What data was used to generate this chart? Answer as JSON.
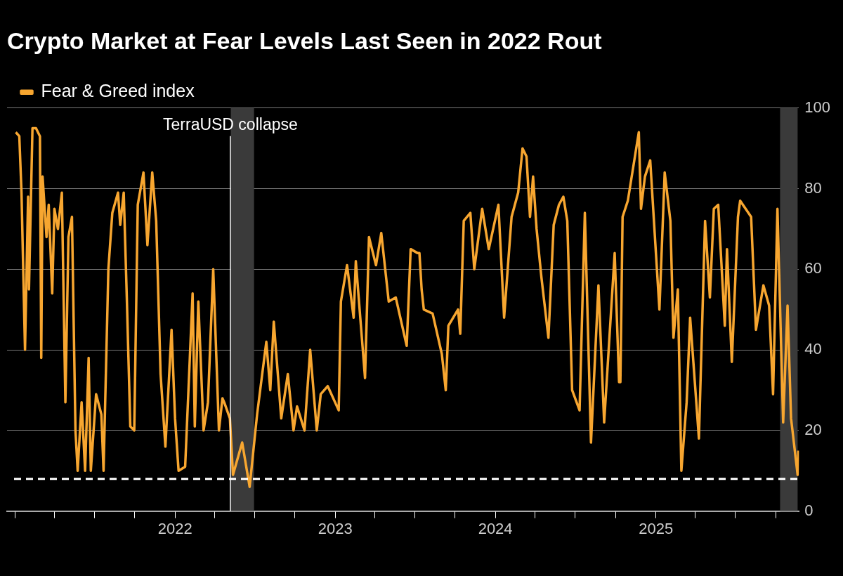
{
  "chart_data": {
    "type": "line",
    "title": "Crypto Market at Fear Levels Last Seen in 2022 Rout",
    "x": [
      "2021-01-03",
      "2021-01-11",
      "2021-01-16",
      "2021-01-24",
      "2021-01-31",
      "2021-02-02",
      "2021-02-10",
      "2021-02-18",
      "2021-02-27",
      "2021-03-02",
      "2021-03-05",
      "2021-03-14",
      "2021-03-19",
      "2021-03-27",
      "2021-04-01",
      "2021-04-09",
      "2021-04-18",
      "2021-04-26",
      "2021-05-03",
      "2021-05-11",
      "2021-05-19",
      "2021-05-24",
      "2021-06-02",
      "2021-06-10",
      "2021-06-18",
      "2021-06-23",
      "2021-07-05",
      "2021-07-17",
      "2021-07-22",
      "2021-08-02",
      "2021-08-11",
      "2021-08-24",
      "2021-08-29",
      "2021-09-06",
      "2021-09-13",
      "2021-09-21",
      "2021-09-30",
      "2021-10-08",
      "2021-10-21",
      "2021-10-30",
      "2021-11-10",
      "2021-11-19",
      "2021-11-29",
      "2021-12-10",
      "2021-12-24",
      "2022-01-01",
      "2022-01-09",
      "2022-01-24",
      "2022-02-10",
      "2022-02-15",
      "2022-02-23",
      "2022-03-07",
      "2022-03-17",
      "2022-03-29",
      "2022-04-11",
      "2022-04-19",
      "2022-04-23",
      "2022-05-06",
      "2022-05-13",
      "2022-06-03",
      "2022-06-20",
      "2022-07-07",
      "2022-07-28",
      "2022-08-06",
      "2022-08-14",
      "2022-08-31",
      "2022-09-15",
      "2022-09-28",
      "2022-10-06",
      "2022-10-23",
      "2022-11-05",
      "2022-11-20",
      "2022-11-29",
      "2022-12-15",
      "2023-01-09",
      "2023-01-14",
      "2023-01-28",
      "2023-02-12",
      "2023-02-17",
      "2023-03-10",
      "2023-03-19",
      "2023-04-04",
      "2023-04-16",
      "2023-05-03",
      "2023-05-19",
      "2023-06-13",
      "2023-06-22",
      "2023-07-08",
      "2023-07-12",
      "2023-07-17",
      "2023-07-22",
      "2023-08-11",
      "2023-09-01",
      "2023-09-10",
      "2023-09-16",
      "2023-10-08",
      "2023-10-13",
      "2023-10-21",
      "2023-11-05",
      "2023-11-14",
      "2023-12-02",
      "2023-12-17",
      "2024-01-08",
      "2024-01-21",
      "2024-02-07",
      "2024-02-22",
      "2024-03-03",
      "2024-03-12",
      "2024-03-20",
      "2024-03-27",
      "2024-04-04",
      "2024-04-15",
      "2024-05-01",
      "2024-05-13",
      "2024-05-25",
      "2024-06-04",
      "2024-06-13",
      "2024-06-24",
      "2024-07-11",
      "2024-07-23",
      "2024-08-06",
      "2024-08-23",
      "2024-09-05",
      "2024-09-29",
      "2024-10-09",
      "2024-10-12",
      "2024-10-17",
      "2024-10-29",
      "2024-11-23",
      "2024-11-28",
      "2024-12-07",
      "2024-12-19",
      "2025-01-01",
      "2025-01-09",
      "2025-01-21",
      "2025-02-03",
      "2025-02-10",
      "2025-02-20",
      "2025-02-28",
      "2025-03-12",
      "2025-03-20",
      "2025-04-09",
      "2025-04-23",
      "2025-05-04",
      "2025-05-13",
      "2025-05-23",
      "2025-06-07",
      "2025-06-12",
      "2025-06-23",
      "2025-07-07",
      "2025-07-12",
      "2025-08-06",
      "2025-08-17",
      "2025-09-03",
      "2025-09-16",
      "2025-09-25",
      "2025-10-05",
      "2025-10-18",
      "2025-10-28",
      "2025-11-05",
      "2025-11-20",
      "2025-11-22"
    ],
    "series": [
      {
        "name": "Fear & Greed index",
        "color": "#f7a630",
        "values": [
          94,
          93,
          79,
          40,
          78,
          55,
          95,
          95,
          93,
          38,
          83,
          68,
          76,
          54,
          75,
          70,
          79,
          27,
          68,
          73,
          20,
          10,
          27,
          10,
          38,
          10,
          29,
          24,
          10,
          60,
          74,
          79,
          71,
          79,
          53,
          21,
          20,
          76,
          84,
          66,
          84,
          72,
          34,
          16,
          45,
          23,
          10,
          11,
          54,
          21,
          52,
          20,
          27,
          60,
          20,
          28,
          27,
          23,
          9,
          17,
          6,
          24,
          42,
          30,
          47,
          23,
          34,
          20,
          26,
          20,
          40,
          20,
          29,
          31,
          25,
          52,
          61,
          48,
          62,
          33,
          68,
          61,
          69,
          52,
          53,
          41,
          65,
          64,
          64,
          55,
          50,
          49,
          39,
          30,
          46,
          50,
          44,
          72,
          74,
          60,
          75,
          65,
          76,
          48,
          73,
          79,
          90,
          88,
          73,
          83,
          70,
          58,
          43,
          71,
          76,
          78,
          72,
          30,
          25,
          74,
          17,
          56,
          22,
          64,
          32,
          32,
          73,
          77,
          94,
          75,
          83,
          87,
          64,
          50,
          84,
          72,
          43,
          55,
          10,
          27,
          48,
          18,
          72,
          53,
          75,
          76,
          46,
          65,
          37,
          73,
          77,
          73,
          45,
          56,
          51,
          29,
          75,
          22,
          51,
          23,
          9,
          15
        ]
      }
    ],
    "xlim": [
      "2020-12-14",
      "2025-11-23"
    ],
    "xticks": [
      {
        "value": "2021-01-01",
        "label": null
      },
      {
        "value": "2021-04-01",
        "label": null
      },
      {
        "value": "2021-07-01",
        "label": null
      },
      {
        "value": "2021-10-01",
        "label": null
      },
      {
        "value": "2022-01-01",
        "label": "2022"
      },
      {
        "value": "2022-04-01",
        "label": null
      },
      {
        "value": "2022-07-01",
        "label": null
      },
      {
        "value": "2022-10-01",
        "label": null
      },
      {
        "value": "2023-01-01",
        "label": "2023"
      },
      {
        "value": "2023-04-01",
        "label": null
      },
      {
        "value": "2023-07-01",
        "label": null
      },
      {
        "value": "2023-10-01",
        "label": null
      },
      {
        "value": "2024-01-01",
        "label": "2024"
      },
      {
        "value": "2024-04-01",
        "label": null
      },
      {
        "value": "2024-07-01",
        "label": null
      },
      {
        "value": "2024-10-01",
        "label": null
      },
      {
        "value": "2025-01-01",
        "label": "2025"
      },
      {
        "value": "2025-04-01",
        "label": null
      },
      {
        "value": "2025-07-01",
        "label": null
      },
      {
        "value": "2025-10-01",
        "label": null
      }
    ],
    "ylim": [
      0,
      100
    ],
    "yticks": [
      0,
      20,
      40,
      60,
      80,
      100
    ],
    "grid": "y",
    "legend": "top left",
    "marker": "none",
    "line_style": "solid",
    "ref_lines": [
      {
        "axis": "x",
        "value": "2022-05-07",
        "label": "TerraUSD collapse",
        "color": "#ffffff",
        "line_style": "solid"
      },
      {
        "axis": "y",
        "value": 8,
        "color": "#ffffff",
        "line_style": "dashed"
      }
    ],
    "bands": [
      {
        "axis": "x",
        "from": "2022-05-08",
        "to": "2022-06-30",
        "color": "#3a3a3a"
      },
      {
        "axis": "x",
        "from": "2025-10-11",
        "to": "2025-11-20",
        "color": "#3a3a3a"
      }
    ]
  }
}
